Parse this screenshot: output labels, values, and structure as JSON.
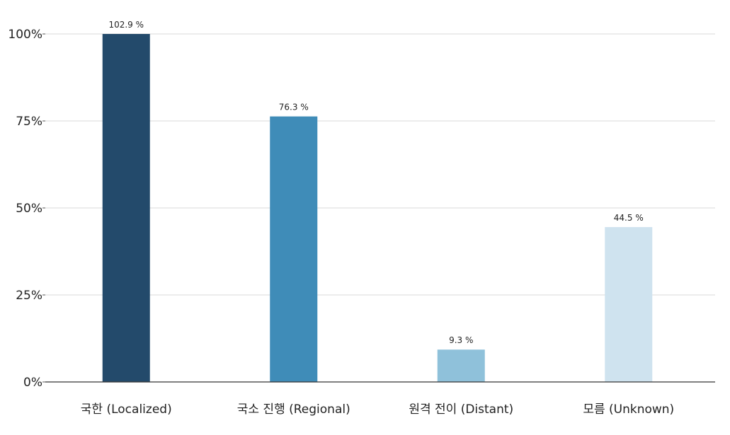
{
  "chart_data": {
    "type": "bar",
    "categories": [
      "국한 (Localized)",
      "국소 진행 (Regional)",
      "원격 전이 (Distant)",
      "모름 (Unknown)"
    ],
    "values": [
      102.9,
      76.3,
      9.3,
      44.5
    ],
    "data_labels": [
      "102.9 %",
      "76.3 %",
      "9.3 %",
      "44.5 %"
    ],
    "colors": [
      "#234a6b",
      "#3f8cb8",
      "#8fc1da",
      "#cfe3ef"
    ],
    "ylim": [
      0,
      100
    ],
    "yticks": [
      0,
      25,
      50,
      75,
      100
    ],
    "ytick_labels": [
      "0%",
      "25%",
      "50%",
      "75%",
      "100%"
    ],
    "grid": true,
    "legend": "none"
  }
}
